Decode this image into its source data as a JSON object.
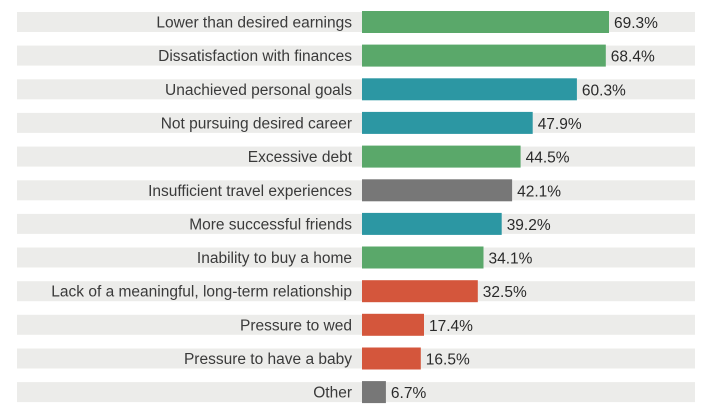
{
  "chart_data": {
    "type": "bar",
    "orientation": "horizontal",
    "title": "",
    "xlabel": "",
    "ylabel": "",
    "xlim": [
      0,
      100
    ],
    "grid": false,
    "legend": "none",
    "categories": [
      "Lower than desired earnings",
      "Dissatisfaction with finances",
      "Unachieved personal goals",
      "Not pursuing desired career",
      "Excessive debt",
      "Insufficient travel experiences",
      "More successful friends",
      "Inability to buy a home",
      "Lack of a meaningful, long-term relationship",
      "Pressure to wed",
      "Pressure to have a baby",
      "Other"
    ],
    "values": [
      69.3,
      68.4,
      60.3,
      47.9,
      44.5,
      42.1,
      39.2,
      34.1,
      32.5,
      17.4,
      16.5,
      6.7
    ],
    "value_labels": [
      "69.3%",
      "68.4%",
      "60.3%",
      "47.9%",
      "44.5%",
      "42.1%",
      "39.2%",
      "34.1%",
      "32.5%",
      "17.4%",
      "16.5%",
      "6.7%"
    ],
    "bar_colors": [
      "green",
      "green",
      "teal",
      "teal",
      "green",
      "gray",
      "teal",
      "green",
      "red",
      "red",
      "red",
      "gray"
    ]
  },
  "colors": {
    "green": "#5aa86a",
    "teal": "#2c97a3",
    "gray": "#777777",
    "red": "#d4563c",
    "row_background": "#ececea",
    "label_text": "#3a3a3a",
    "value_text": "#2a2a2a"
  }
}
